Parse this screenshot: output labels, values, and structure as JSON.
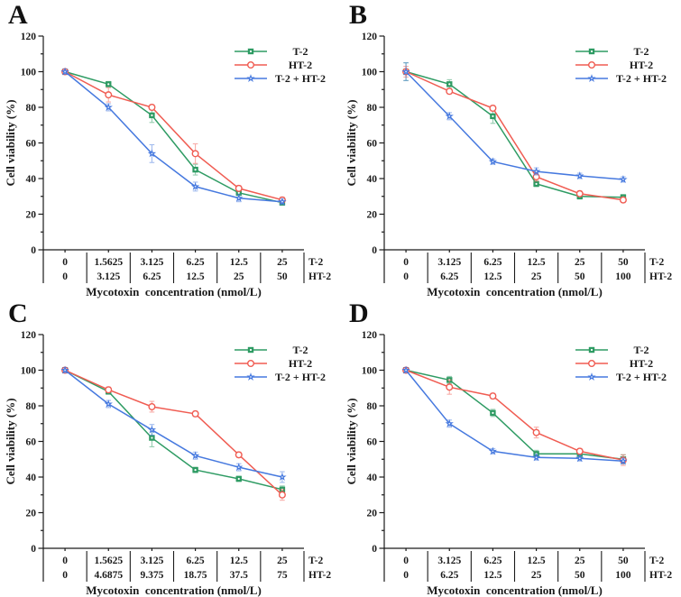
{
  "figure": {
    "background": "#ffffff",
    "text_color": "#1a1a1a"
  },
  "chart_data": [
    {
      "panel_label": "A",
      "type": "line",
      "ylabel": "Cell viability (%)",
      "xlabel": "Mycotoxin  concentration (nmol/L)",
      "ylim": [
        0,
        120
      ],
      "yticks": [
        0,
        20,
        40,
        60,
        80,
        100,
        120
      ],
      "grid": false,
      "legend_position": "top-right",
      "x_table": {
        "rows": [
          {
            "row_label": "T-2",
            "cells": [
              "0",
              "1.5625",
              "3.125",
              "6.25",
              "12.5",
              "25"
            ]
          },
          {
            "row_label": "HT-2",
            "cells": [
              "0",
              "3.125",
              "6.25",
              "12.5",
              "25",
              "50"
            ]
          }
        ]
      },
      "series": [
        {
          "name": "T-2",
          "marker": "square-dot",
          "color": "#2E9B63",
          "values": [
            100,
            93,
            75.5,
            45,
            32,
            26.5
          ],
          "errors": [
            1,
            1.5,
            4,
            3,
            1.5,
            1.5
          ]
        },
        {
          "name": "HT-2",
          "marker": "open-circle",
          "color": "#F05C52",
          "values": [
            100,
            87,
            80,
            54,
            34.5,
            28
          ],
          "errors": [
            1.5,
            4,
            1.5,
            5.5,
            1.5,
            1.5
          ]
        },
        {
          "name": "T-2 + HT-2",
          "marker": "star",
          "color": "#4679DF",
          "values": [
            100,
            80,
            54,
            35.5,
            29,
            27
          ],
          "errors": [
            1.5,
            2,
            5,
            2.5,
            2,
            1.5
          ]
        }
      ]
    },
    {
      "panel_label": "B",
      "type": "line",
      "ylabel": "Cell viability (%)",
      "xlabel": "Mycotoxin  concentration (nmol/L)",
      "ylim": [
        0,
        120
      ],
      "yticks": [
        0,
        20,
        40,
        60,
        80,
        100,
        120
      ],
      "grid": false,
      "legend_position": "top-right",
      "x_table": {
        "rows": [
          {
            "row_label": "T-2",
            "cells": [
              "0",
              "3.125",
              "6.25",
              "12.5",
              "25",
              "50"
            ]
          },
          {
            "row_label": "HT-2",
            "cells": [
              "0",
              "6.25",
              "12.5",
              "25",
              "50",
              "100"
            ]
          }
        ]
      },
      "series": [
        {
          "name": "T-2",
          "marker": "square-dot",
          "color": "#2E9B63",
          "values": [
            100,
            93,
            75,
            37,
            30,
            29.5
          ],
          "errors": [
            5,
            2.5,
            4,
            1.5,
            1.5,
            1.5
          ]
        },
        {
          "name": "HT-2",
          "marker": "open-circle",
          "color": "#F05C52",
          "values": [
            100,
            89,
            79.5,
            41,
            31.5,
            28
          ],
          "errors": [
            3,
            1.5,
            1.5,
            2.5,
            1.5,
            1.5
          ]
        },
        {
          "name": "T-2 + HT-2",
          "marker": "star",
          "color": "#4679DF",
          "values": [
            100,
            75,
            49.5,
            44,
            41.5,
            39.5
          ],
          "errors": [
            5,
            2,
            1.5,
            2,
            1.5,
            1.5
          ]
        }
      ]
    },
    {
      "panel_label": "C",
      "type": "line",
      "ylabel": "Cell viability (%)",
      "xlabel": "Mycotoxin  concentration (nmol/L)",
      "ylim": [
        0,
        120
      ],
      "yticks": [
        0,
        20,
        40,
        60,
        80,
        100,
        120
      ],
      "grid": false,
      "legend_position": "top-right",
      "x_table": {
        "rows": [
          {
            "row_label": "T-2",
            "cells": [
              "0",
              "1.5625",
              "3.125",
              "6.25",
              "12.5",
              "25"
            ]
          },
          {
            "row_label": "HT-2",
            "cells": [
              "0",
              "4.6875",
              "9.375",
              "18.75",
              "37.5",
              "75"
            ]
          }
        ]
      },
      "series": [
        {
          "name": "T-2",
          "marker": "square-dot",
          "color": "#2E9B63",
          "values": [
            100,
            88,
            62,
            44,
            39,
            33
          ],
          "errors": [
            1.5,
            1.5,
            5,
            1.5,
            1.5,
            2
          ]
        },
        {
          "name": "HT-2",
          "marker": "open-circle",
          "color": "#F05C52",
          "values": [
            100,
            89,
            79.5,
            75.5,
            52.5,
            30
          ],
          "errors": [
            1.5,
            1.5,
            3,
            1.5,
            1.5,
            3
          ]
        },
        {
          "name": "T-2 + HT-2",
          "marker": "star",
          "color": "#4679DF",
          "values": [
            100,
            81,
            66.5,
            52,
            45.5,
            40
          ],
          "errors": [
            1.5,
            2,
            3,
            2,
            2,
            3
          ]
        }
      ]
    },
    {
      "panel_label": "D",
      "type": "line",
      "ylabel": "Cell viability (%)",
      "xlabel": "Mycotoxin  concentration (nmol/L)",
      "ylim": [
        0,
        120
      ],
      "yticks": [
        0,
        20,
        40,
        60,
        80,
        100,
        120
      ],
      "grid": false,
      "legend_position": "top-right",
      "x_table": {
        "rows": [
          {
            "row_label": "T-2",
            "cells": [
              "0",
              "3.125",
              "6.25",
              "12.5",
              "25",
              "50"
            ]
          },
          {
            "row_label": "HT-2",
            "cells": [
              "0",
              "6.25",
              "12.5",
              "25",
              "50",
              "100"
            ]
          }
        ]
      },
      "series": [
        {
          "name": "T-2",
          "marker": "square-dot",
          "color": "#2E9B63",
          "values": [
            100,
            94.5,
            76,
            53,
            53,
            50
          ],
          "errors": [
            1.5,
            2,
            2,
            2,
            1.5,
            2.5
          ]
        },
        {
          "name": "HT-2",
          "marker": "open-circle",
          "color": "#F05C52",
          "values": [
            100,
            90.5,
            85.5,
            65,
            54.5,
            49.5
          ],
          "errors": [
            1.5,
            4,
            1.5,
            3,
            1.5,
            3
          ]
        },
        {
          "name": "T-2 + HT-2",
          "marker": "star",
          "color": "#4679DF",
          "values": [
            100,
            70,
            54.5,
            51,
            50.5,
            49
          ],
          "errors": [
            1.5,
            2,
            1.5,
            1.5,
            1.5,
            1.5
          ]
        }
      ]
    }
  ]
}
